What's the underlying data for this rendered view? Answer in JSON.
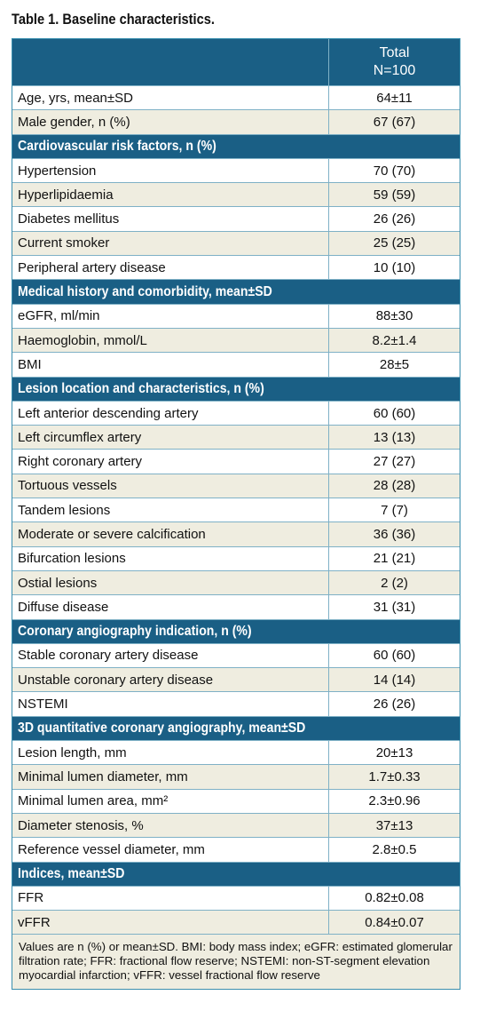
{
  "title": "Table 1. Baseline characteristics.",
  "header": {
    "line1": "Total",
    "line2": "N=100"
  },
  "rows": [
    {
      "kind": "row",
      "label": "Age, yrs, mean±SD",
      "value": "64±11"
    },
    {
      "kind": "row",
      "label": "Male gender, n (%)",
      "value": "67 (67)"
    },
    {
      "kind": "section",
      "label": "Cardiovascular risk factors, n (%)"
    },
    {
      "kind": "row",
      "label": "Hypertension",
      "value": "70 (70)"
    },
    {
      "kind": "row",
      "label": "Hyperlipidaemia",
      "value": "59 (59)"
    },
    {
      "kind": "row",
      "label": "Diabetes mellitus",
      "value": "26 (26)"
    },
    {
      "kind": "row",
      "label": "Current smoker",
      "value": "25 (25)"
    },
    {
      "kind": "row",
      "label": "Peripheral artery disease",
      "value": "10 (10)"
    },
    {
      "kind": "section",
      "label": "Medical history and comorbidity, mean±SD"
    },
    {
      "kind": "row",
      "label": "eGFR, ml/min",
      "value": "88±30"
    },
    {
      "kind": "row",
      "label": "Haemoglobin, mmol/L",
      "value": "8.2±1.4"
    },
    {
      "kind": "row",
      "label": "BMI",
      "value": "28±5"
    },
    {
      "kind": "section",
      "label": "Lesion location and characteristics, n (%)"
    },
    {
      "kind": "row",
      "label": "Left anterior descending artery",
      "value": "60 (60)"
    },
    {
      "kind": "row",
      "label": "Left circumflex artery",
      "value": "13 (13)"
    },
    {
      "kind": "row",
      "label": "Right coronary artery",
      "value": "27 (27)"
    },
    {
      "kind": "row",
      "label": "Tortuous vessels",
      "value": "28 (28)"
    },
    {
      "kind": "row",
      "label": "Tandem lesions",
      "value": "7 (7)"
    },
    {
      "kind": "row",
      "label": "Moderate or severe calcification",
      "value": "36 (36)"
    },
    {
      "kind": "row",
      "label": "Bifurcation lesions",
      "value": "21 (21)"
    },
    {
      "kind": "row",
      "label": "Ostial lesions",
      "value": "2 (2)"
    },
    {
      "kind": "row",
      "label": "Diffuse disease",
      "value": "31 (31)"
    },
    {
      "kind": "section",
      "label": "Coronary angiography indication, n (%)"
    },
    {
      "kind": "row",
      "label": "Stable coronary artery disease",
      "value": "60 (60)"
    },
    {
      "kind": "row",
      "label": "Unstable coronary artery disease",
      "value": "14 (14)"
    },
    {
      "kind": "row",
      "label": "NSTEMI",
      "value": "26 (26)"
    },
    {
      "kind": "section",
      "label": "3D quantitative coronary angiography, mean±SD"
    },
    {
      "kind": "row",
      "label": "Lesion length, mm",
      "value": "20±13"
    },
    {
      "kind": "row",
      "label": "Minimal lumen diameter, mm",
      "value": "1.7±0.33"
    },
    {
      "kind": "row",
      "label": "Minimal lumen area, mm²",
      "value": "2.3±0.96"
    },
    {
      "kind": "row",
      "label": "Diameter stenosis, %",
      "value": "37±13"
    },
    {
      "kind": "row",
      "label": "Reference vessel diameter, mm",
      "value": "2.8±0.5"
    },
    {
      "kind": "section",
      "label": "Indices, mean±SD"
    },
    {
      "kind": "row",
      "label": "FFR",
      "value": "0.82±0.08"
    },
    {
      "kind": "row",
      "label": "vFFR",
      "value": "0.84±0.07"
    }
  ],
  "footnote": "Values are n (%) or mean±SD. BMI: body mass index; eGFR: estimated glomerular filtration rate; FFR: fractional flow reserve; NSTEMI: non-ST-segment elevation myocardial infarction; vFFR: vessel fractional flow reserve",
  "colors": {
    "header_bg": "#1a5f85",
    "shade_bg": "#efede0",
    "border": "#7fb1c6"
  }
}
